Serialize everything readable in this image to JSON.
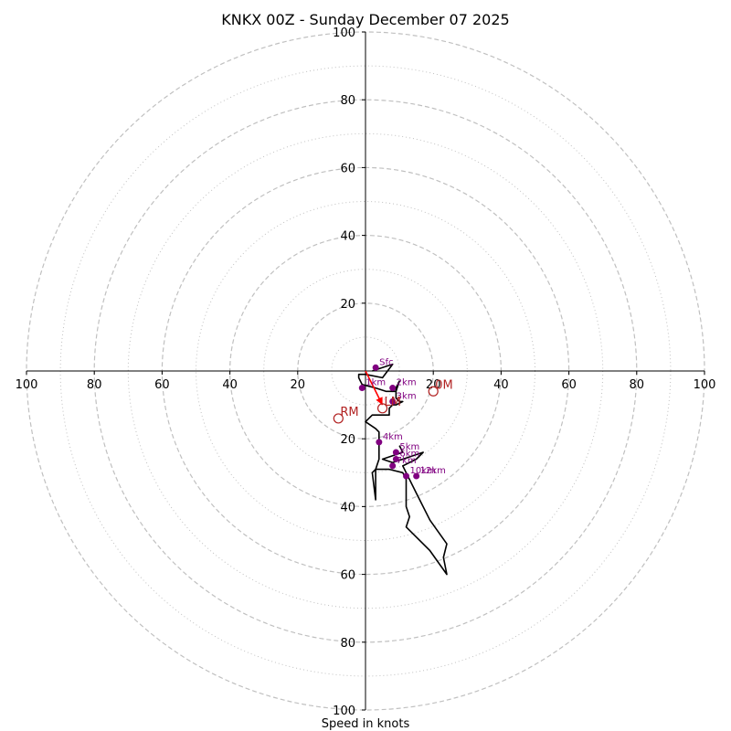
{
  "chart_data": {
    "type": "hodograph",
    "title": "KNKX 00Z - Sunday December 07 2025",
    "xlabel": "Speed in knots",
    "range": [
      -100,
      100
    ],
    "rings_major": [
      20,
      40,
      60,
      80,
      100
    ],
    "rings_minor": [
      10,
      30,
      50,
      70,
      90
    ],
    "tick_labels": [
      "100",
      "80",
      "60",
      "40",
      "20",
      "20",
      "40",
      "60",
      "80",
      "100"
    ],
    "tick_values": [
      -100,
      -80,
      -60,
      -40,
      -20,
      20,
      40,
      60,
      80,
      100
    ],
    "grid": true,
    "colors": {
      "trace": "#000000",
      "height_marker": "#800080",
      "motion": "#b22222",
      "arrow": "#ff0000",
      "grid": "#c0c0c0"
    },
    "trace": [
      [
        2,
        0
      ],
      [
        5,
        1
      ],
      [
        8,
        2
      ],
      [
        5,
        -2
      ],
      [
        0,
        -1
      ],
      [
        -2,
        -1
      ],
      [
        -2,
        -2
      ],
      [
        -1,
        -4
      ],
      [
        3,
        -5
      ],
      [
        6,
        -6
      ],
      [
        9,
        -6
      ],
      [
        9,
        -5
      ],
      [
        10,
        -3
      ],
      [
        9,
        -6
      ],
      [
        9,
        -8
      ],
      [
        10,
        -9
      ],
      [
        11,
        -9
      ],
      [
        9,
        -10
      ],
      [
        8,
        -10
      ],
      [
        7,
        -11
      ],
      [
        7,
        -13
      ],
      [
        2,
        -13
      ],
      [
        0,
        -15
      ],
      [
        3,
        -17
      ],
      [
        4,
        -18
      ],
      [
        4,
        -19
      ],
      [
        4,
        -21
      ],
      [
        4,
        -23
      ],
      [
        4,
        -26
      ],
      [
        3,
        -29
      ],
      [
        2,
        -30
      ],
      [
        3,
        -38
      ],
      [
        3,
        -29
      ],
      [
        7,
        -29
      ],
      [
        11,
        -30
      ],
      [
        12,
        -32
      ],
      [
        12,
        -40
      ],
      [
        13,
        -43
      ],
      [
        12,
        -46
      ],
      [
        19,
        -53
      ],
      [
        24,
        -60
      ],
      [
        23,
        -55
      ],
      [
        24,
        -51
      ],
      [
        19,
        -44
      ],
      [
        15,
        -36
      ],
      [
        12,
        -30
      ],
      [
        11,
        -28
      ],
      [
        15,
        -26
      ],
      [
        17,
        -24
      ],
      [
        8,
        -27
      ],
      [
        5,
        -26
      ],
      [
        11,
        -24
      ],
      [
        10,
        -22
      ]
    ],
    "height_markers": [
      {
        "label": "Sfc",
        "u": 3,
        "v": 1
      },
      {
        "label": "1km",
        "u": -1,
        "v": -5
      },
      {
        "label": "2km",
        "u": 8,
        "v": -5
      },
      {
        "label": "3km",
        "u": 8,
        "v": -9
      },
      {
        "label": "4km",
        "u": 4,
        "v": -21
      },
      {
        "label": "5km",
        "u": 9,
        "v": -24
      },
      {
        "label": "6km",
        "u": 9,
        "v": -26
      },
      {
        "label": "7km",
        "u": 8,
        "v": -28
      },
      {
        "label": "10km",
        "u": 12,
        "v": -31
      },
      {
        "label": "12km",
        "u": 15,
        "v": -31
      }
    ],
    "storm_motion": [
      {
        "label": "RM",
        "u": -8,
        "v": -14
      },
      {
        "label": "LM",
        "u": 5,
        "v": -11
      },
      {
        "label": "0M",
        "u": 20,
        "v": -6
      }
    ],
    "motion_arrow": {
      "from": [
        0,
        0
      ],
      "to": [
        5,
        -10
      ]
    }
  }
}
